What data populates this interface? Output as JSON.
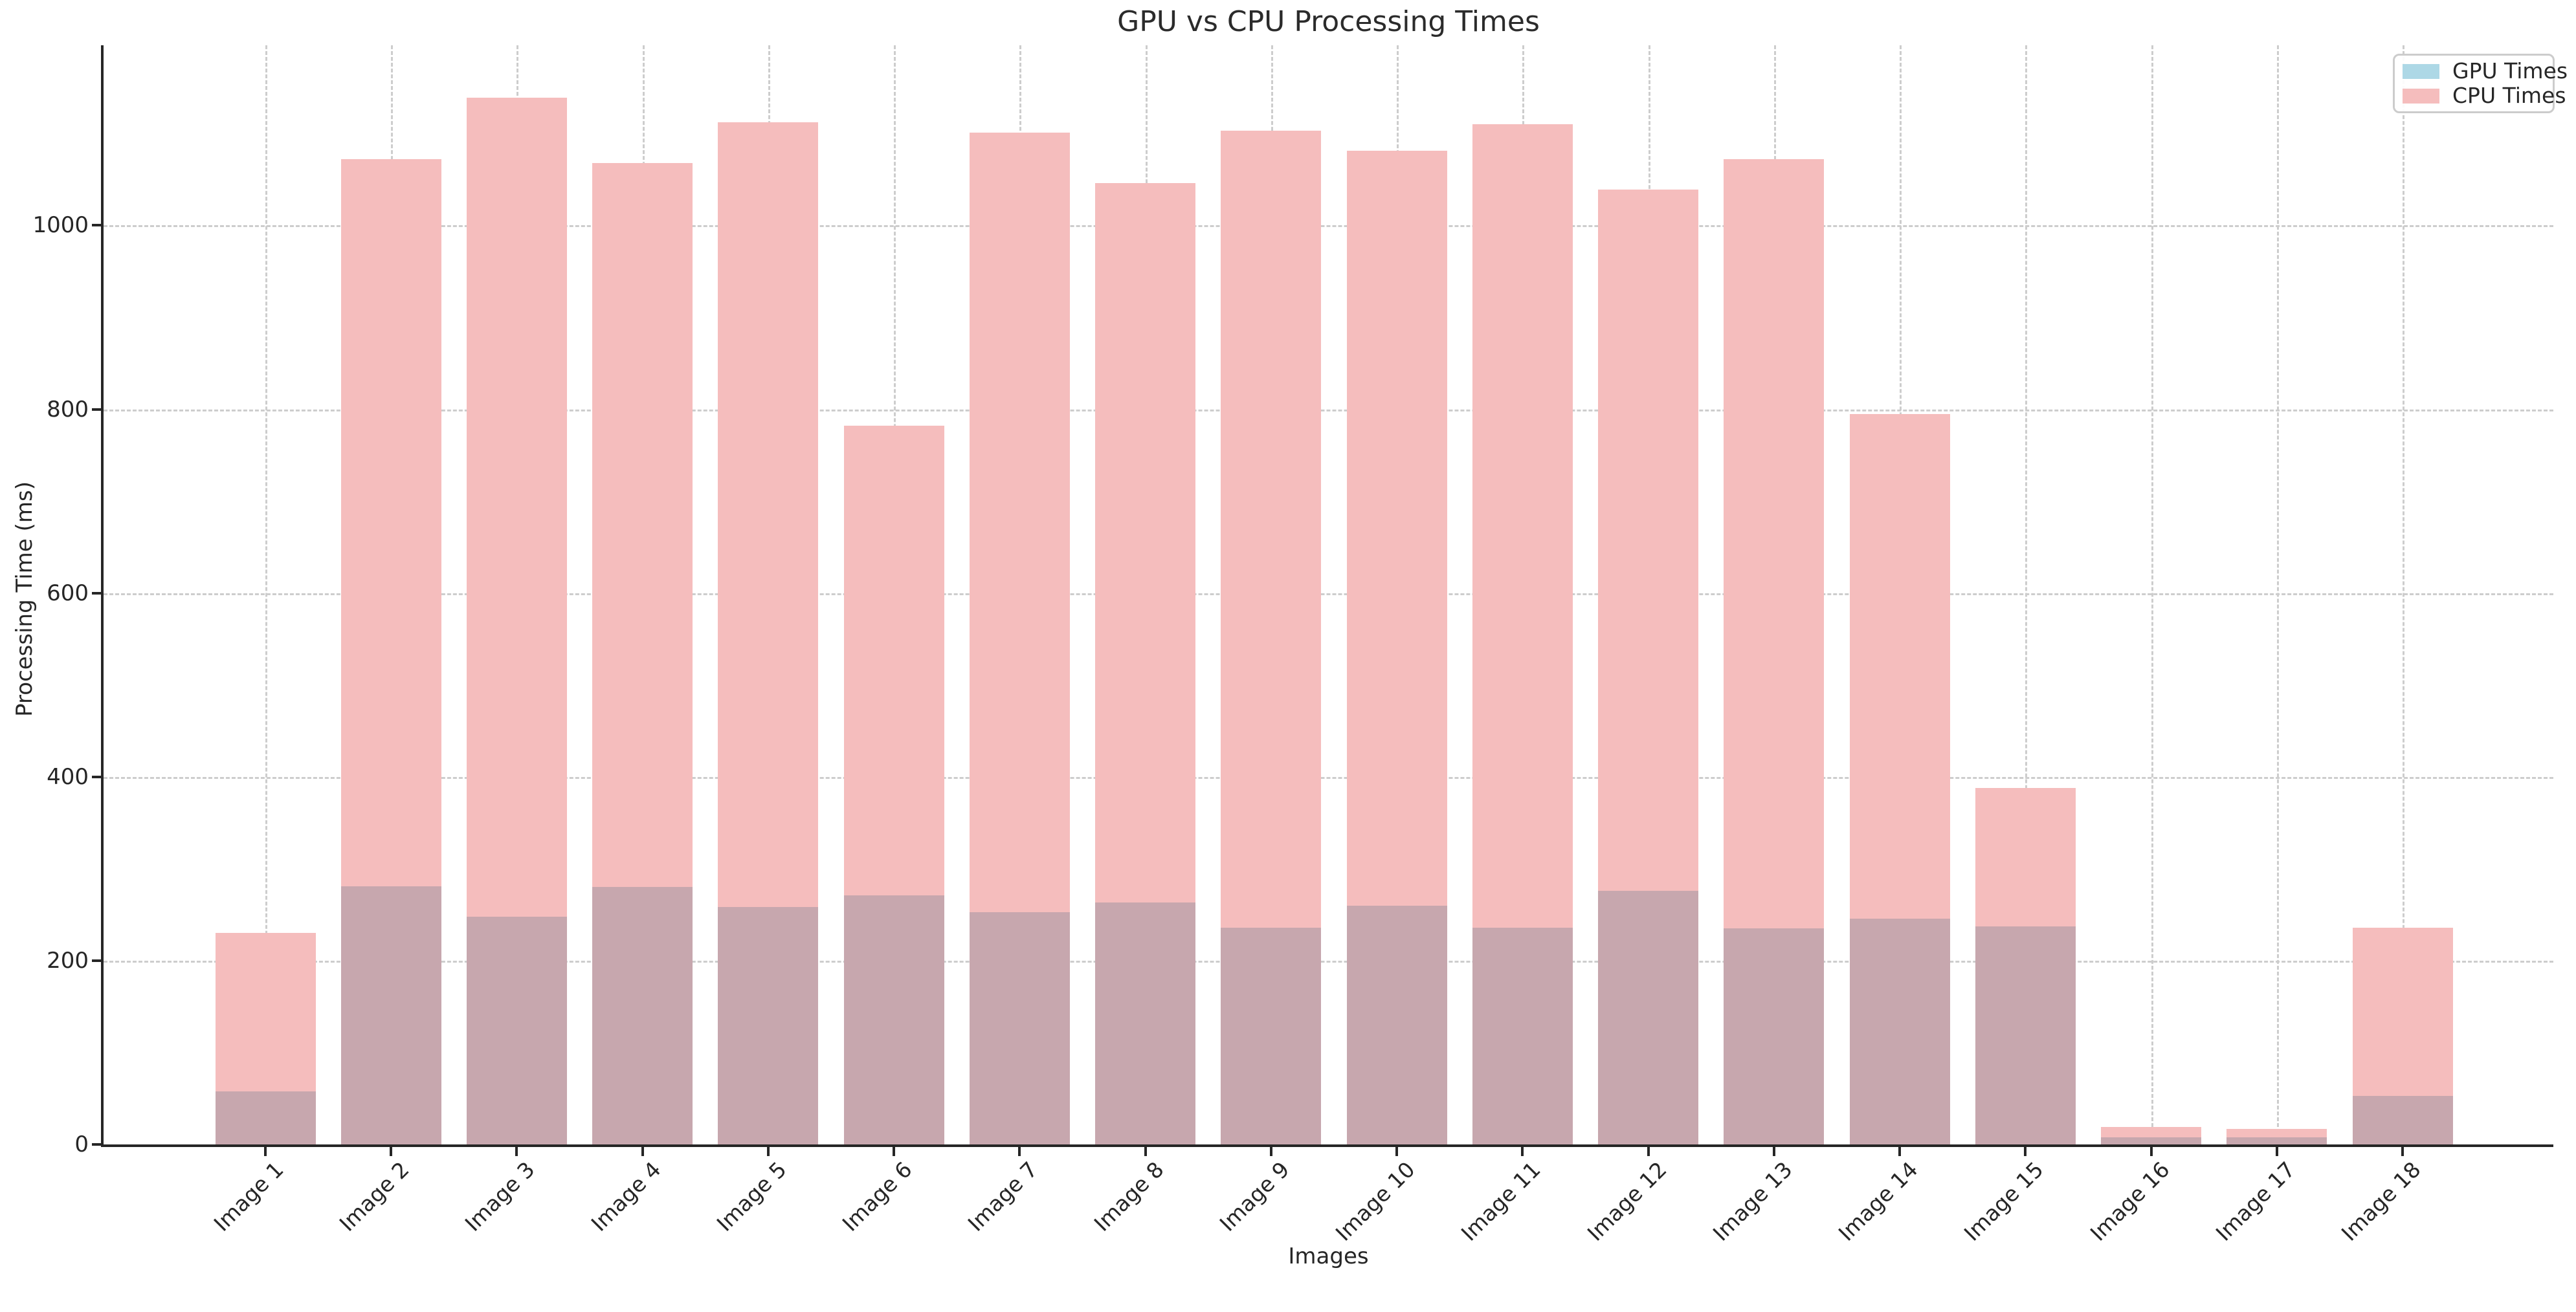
{
  "title": "GPU vs CPU Processing Times",
  "xlabel": "Images",
  "ylabel": "Processing Time (ms)",
  "legend": {
    "items": [
      {
        "label": "GPU Times",
        "color": "#ADD8E6"
      },
      {
        "label": "CPU Times",
        "color": "#F5BDBD"
      }
    ]
  },
  "colors": {
    "gpu_fill": "#ADD8E6",
    "cpu_fill": "#F5BDBD",
    "overlap_fill": "#C7A7AE",
    "grid": "#CDCDCD",
    "axis": "#262626"
  },
  "chart_data": {
    "type": "bar",
    "title": "GPU vs CPU Processing Times",
    "xlabel": "Images",
    "ylabel": "Processing Time (ms)",
    "categories": [
      "Image 1",
      "Image 2",
      "Image 3",
      "Image 4",
      "Image 5",
      "Image 6",
      "Image 7",
      "Image 8",
      "Image 9",
      "Image 10",
      "Image 11",
      "Image 12",
      "Image 13",
      "Image 14",
      "Image 15",
      "Image 16",
      "Image 17",
      "Image 18"
    ],
    "series": [
      {
        "name": "GPU Times",
        "values": [
          58,
          281,
          248,
          280,
          258,
          271,
          253,
          263,
          236,
          260,
          236,
          276,
          235,
          246,
          237,
          8,
          8,
          53
        ]
      },
      {
        "name": "CPU Times",
        "values": [
          230,
          1072,
          1139,
          1068,
          1112,
          782,
          1101,
          1046,
          1103,
          1081,
          1110,
          1039,
          1072,
          795,
          388,
          19,
          17,
          236
        ]
      }
    ],
    "y_ticks": [
      0,
      200,
      400,
      600,
      800,
      1000
    ],
    "ylim": [
      0,
      1196
    ],
    "grid": "dashed, both axes",
    "legend_position": "upper right",
    "bars_overlaid": "GPU and CPU bars drawn at same x position with transparency; overlap renders mauve"
  }
}
